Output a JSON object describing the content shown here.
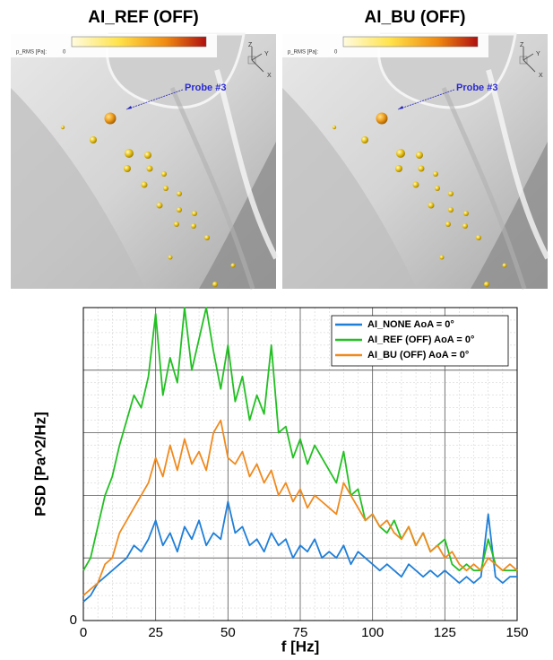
{
  "panels": [
    {
      "title": "AI_REF (OFF)",
      "colorbar_label": "p_RMS [Pa]:",
      "colorbar_min": "0",
      "probe_label": "Probe #3",
      "triad": [
        "Z",
        "Y",
        "X"
      ]
    },
    {
      "title": "AI_BU (OFF)",
      "colorbar_label": "p_RMS [Pa]:",
      "colorbar_min": "0",
      "probe_label": "Probe #3",
      "triad": [
        "Z",
        "Y",
        "X"
      ]
    }
  ],
  "chart_data": {
    "type": "line",
    "xlabel": "f [Hz]",
    "ylabel": "PSD [Pa^2/Hz]",
    "x": [
      0,
      2.5,
      5,
      7.5,
      10,
      12.5,
      15,
      17.5,
      20,
      22.5,
      25,
      27.5,
      30,
      32.5,
      35,
      37.5,
      40,
      42.5,
      45,
      47.5,
      50,
      52.5,
      55,
      57.5,
      60,
      62.5,
      65,
      67.5,
      70,
      72.5,
      75,
      77.5,
      80,
      82.5,
      85,
      87.5,
      90,
      92.5,
      95,
      97.5,
      100,
      102.5,
      105,
      107.5,
      110,
      112.5,
      115,
      117.5,
      120,
      122.5,
      125,
      127.5,
      130,
      132.5,
      135,
      137.5,
      140,
      142.5,
      145,
      147.5,
      150
    ],
    "series": [
      {
        "name": "AI_NONE AoA = 0°",
        "color": "#1f7fd8",
        "values": [
          0.3,
          0.4,
          0.6,
          0.7,
          0.8,
          0.9,
          1.0,
          1.2,
          1.1,
          1.3,
          1.6,
          1.2,
          1.4,
          1.1,
          1.5,
          1.3,
          1.6,
          1.2,
          1.4,
          1.3,
          1.9,
          1.4,
          1.5,
          1.2,
          1.3,
          1.1,
          1.4,
          1.2,
          1.3,
          1.0,
          1.2,
          1.1,
          1.3,
          1.0,
          1.1,
          1.0,
          1.2,
          0.9,
          1.1,
          1.0,
          0.9,
          0.8,
          0.9,
          0.8,
          0.7,
          0.9,
          0.8,
          0.7,
          0.8,
          0.7,
          0.8,
          0.7,
          0.6,
          0.7,
          0.6,
          0.7,
          1.7,
          0.7,
          0.6,
          0.7,
          0.7
        ]
      },
      {
        "name": "AI_REF (OFF) AoA = 0°",
        "color": "#22c022",
        "values": [
          0.8,
          1.0,
          1.5,
          2.0,
          2.3,
          2.8,
          3.2,
          3.6,
          3.4,
          3.9,
          4.9,
          3.6,
          4.2,
          3.8,
          5.0,
          4.0,
          4.5,
          5.0,
          4.3,
          3.7,
          4.4,
          3.5,
          3.9,
          3.2,
          3.6,
          3.3,
          4.4,
          3.0,
          3.1,
          2.6,
          2.9,
          2.5,
          2.8,
          2.6,
          2.4,
          2.2,
          2.7,
          2.0,
          2.1,
          1.6,
          1.7,
          1.5,
          1.4,
          1.6,
          1.3,
          1.5,
          1.2,
          1.4,
          1.1,
          1.2,
          1.3,
          0.9,
          0.8,
          0.9,
          0.8,
          0.8,
          1.3,
          0.9,
          0.8,
          0.8,
          0.8
        ]
      },
      {
        "name": "AI_BU (OFF) AoA = 0°",
        "color": "#f08a1e",
        "values": [
          0.4,
          0.5,
          0.6,
          0.9,
          1.0,
          1.4,
          1.6,
          1.8,
          2.0,
          2.2,
          2.6,
          2.3,
          2.8,
          2.4,
          2.9,
          2.5,
          2.7,
          2.4,
          3.0,
          3.2,
          2.6,
          2.5,
          2.7,
          2.3,
          2.5,
          2.2,
          2.4,
          2.0,
          2.2,
          1.9,
          2.1,
          1.8,
          2.0,
          1.9,
          1.8,
          1.7,
          2.2,
          2.0,
          1.8,
          1.6,
          1.7,
          1.5,
          1.6,
          1.4,
          1.3,
          1.5,
          1.2,
          1.4,
          1.1,
          1.2,
          1.0,
          1.1,
          0.9,
          0.8,
          0.9,
          0.8,
          1.0,
          0.9,
          0.8,
          0.9,
          0.8
        ]
      }
    ],
    "xlim": [
      0,
      150
    ],
    "xticks": [
      0,
      25,
      50,
      75,
      100,
      125,
      150
    ],
    "ylim": [
      0,
      5
    ],
    "yticks": [
      0,
      {
        "value": 1,
        "label": null
      },
      {
        "value": 2,
        "label": null
      },
      {
        "value": 3,
        "label": null
      },
      {
        "value": 4,
        "label": null
      },
      {
        "value": 5,
        "label": null
      }
    ],
    "grid": true,
    "legend": "upper right"
  }
}
